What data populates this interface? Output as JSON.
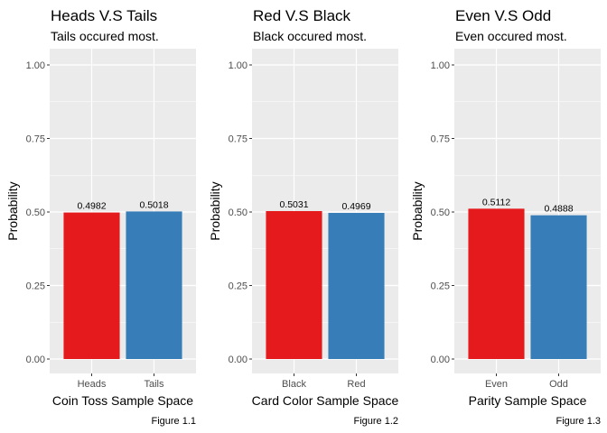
{
  "chart_data": [
    {
      "type": "bar",
      "title": "Heads V.S Tails",
      "subtitle": "Tails occured most.",
      "categories": [
        "Heads",
        "Tails"
      ],
      "values": [
        0.4982,
        0.5018
      ],
      "value_labels": [
        "0.4982",
        "0.5018"
      ],
      "colors": [
        "#E41A1C",
        "#377EB8"
      ],
      "xlabel": "Coin Toss Sample Space",
      "ylabel": "Probability",
      "caption": "Figure 1.1",
      "ylim": [
        0,
        1
      ],
      "yticks": [
        "0.00",
        "0.25",
        "0.50",
        "0.75",
        "1.00"
      ],
      "grid": true,
      "legend": "none"
    },
    {
      "type": "bar",
      "title": "Red V.S Black",
      "subtitle": "Black occured most.",
      "categories": [
        "Black",
        "Red"
      ],
      "values": [
        0.5031,
        0.4969
      ],
      "value_labels": [
        "0.5031",
        "0.4969"
      ],
      "colors": [
        "#E41A1C",
        "#377EB8"
      ],
      "xlabel": "Card Color Sample Space",
      "ylabel": "Probability",
      "caption": "Figure 1.2",
      "ylim": [
        0,
        1
      ],
      "yticks": [
        "0.00",
        "0.25",
        "0.50",
        "0.75",
        "1.00"
      ],
      "grid": true,
      "legend": "none"
    },
    {
      "type": "bar",
      "title": "Even V.S Odd",
      "subtitle": "Even occured most.",
      "categories": [
        "Even",
        "Odd"
      ],
      "values": [
        0.5112,
        0.4888
      ],
      "value_labels": [
        "0.5112",
        "0.4888"
      ],
      "colors": [
        "#E41A1C",
        "#377EB8"
      ],
      "xlabel": "Parity Sample Space",
      "ylabel": "Probability",
      "caption": "Figure 1.3",
      "ylim": [
        0,
        1
      ],
      "yticks": [
        "0.00",
        "0.25",
        "0.50",
        "0.75",
        "1.00"
      ],
      "grid": true,
      "legend": "none"
    }
  ],
  "theme": {
    "panel_bg": "#EBEBEB",
    "grid_color": "#FFFFFF",
    "tick_color": "#4D4D4D"
  }
}
